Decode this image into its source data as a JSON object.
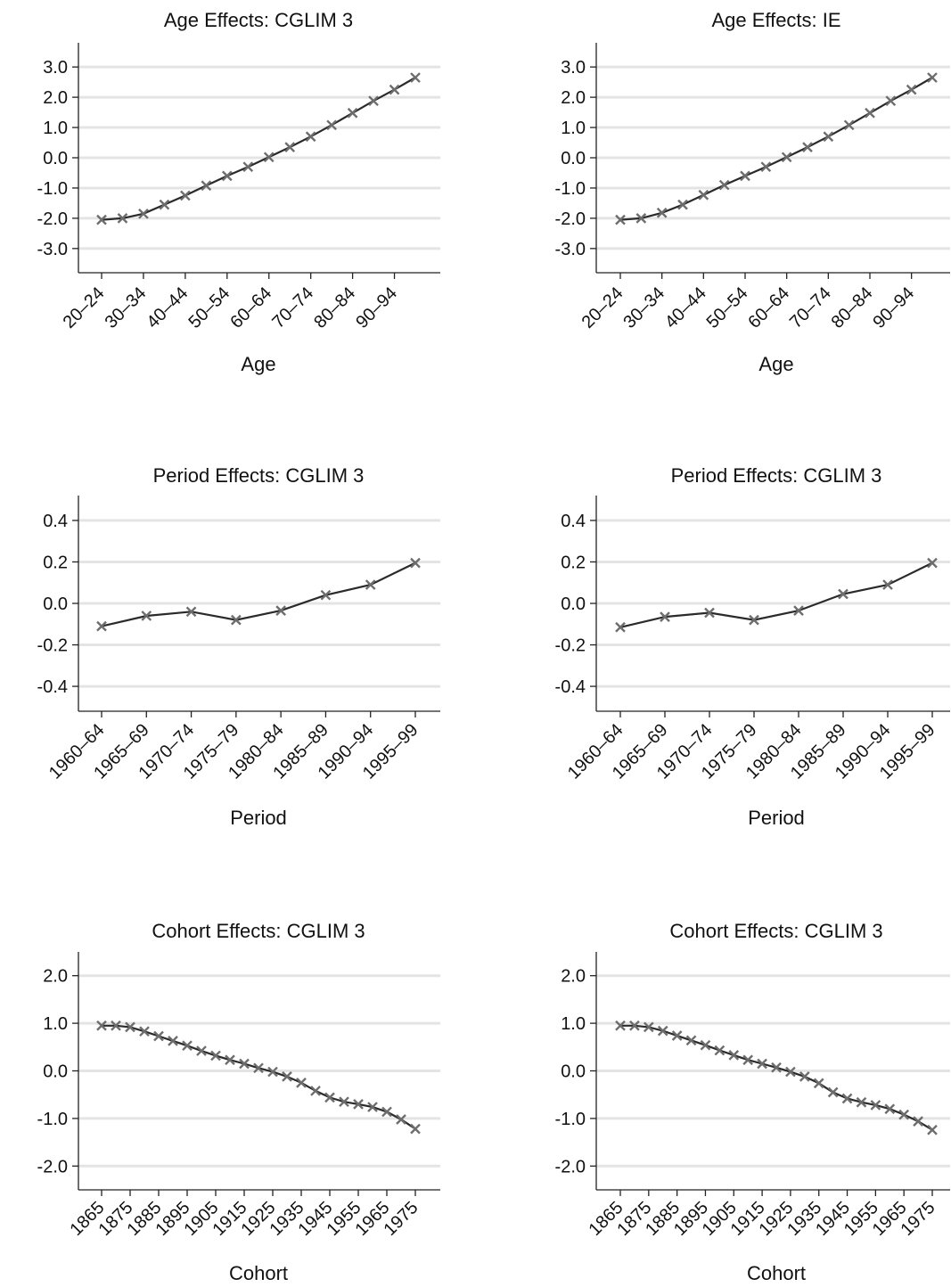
{
  "chart_data": [
    {
      "type": "line",
      "title": "Age Effects: CGLIM 3",
      "xlabel": "Age",
      "ylabel": "",
      "ylim": [
        -3.8,
        3.8
      ],
      "yticks": [
        "3.0",
        "2.0",
        "1.0",
        "0.0",
        "-1.0",
        "-2.0",
        "-3.0"
      ],
      "ytick_values": [
        3,
        2,
        1,
        0,
        -1,
        -2,
        -3
      ],
      "categories": [
        "20-24",
        "25-29",
        "30-34",
        "35-39",
        "40-44",
        "45-49",
        "50-54",
        "55-59",
        "60-64",
        "65-69",
        "70-74",
        "75-79",
        "80-84",
        "85-89",
        "90-94",
        "95-99"
      ],
      "xtick_labels": [
        "20–24",
        "30–34",
        "40–44",
        "50–54",
        "60–64",
        "70–74",
        "80–84",
        "90–94"
      ],
      "xtick_indices": [
        0,
        2,
        4,
        6,
        8,
        10,
        12,
        14
      ],
      "values": [
        -2.05,
        -2.0,
        -1.85,
        -1.55,
        -1.25,
        -0.92,
        -0.6,
        -0.3,
        0.02,
        0.35,
        0.7,
        1.08,
        1.48,
        1.88,
        2.25,
        2.65
      ],
      "grid": true
    },
    {
      "type": "line",
      "title": "Age Effects: IE",
      "xlabel": "Age",
      "ylabel": "",
      "ylim": [
        -3.8,
        3.8
      ],
      "yticks": [
        "3.0",
        "2.0",
        "1.0",
        "0.0",
        "-1.0",
        "-2.0",
        "-3.0"
      ],
      "ytick_values": [
        3,
        2,
        1,
        0,
        -1,
        -2,
        -3
      ],
      "categories": [
        "20-24",
        "25-29",
        "30-34",
        "35-39",
        "40-44",
        "45-49",
        "50-54",
        "55-59",
        "60-64",
        "65-69",
        "70-74",
        "75-79",
        "80-84",
        "85-89",
        "90-94",
        "95-99"
      ],
      "xtick_labels": [
        "20–24",
        "30–34",
        "40–44",
        "50–54",
        "60–64",
        "70–74",
        "80–84",
        "90–94"
      ],
      "xtick_indices": [
        0,
        2,
        4,
        6,
        8,
        10,
        12,
        14
      ],
      "values": [
        -2.05,
        -2.0,
        -1.82,
        -1.55,
        -1.23,
        -0.9,
        -0.6,
        -0.3,
        0.02,
        0.35,
        0.7,
        1.08,
        1.48,
        1.88,
        2.25,
        2.65
      ],
      "grid": true
    },
    {
      "type": "line",
      "title": "Period Effects: CGLIM 3",
      "xlabel": "Period",
      "ylabel": "",
      "ylim": [
        -0.52,
        0.52
      ],
      "yticks": [
        "0.4",
        "0.2",
        "0.0",
        "-0.2",
        "-0.4"
      ],
      "ytick_values": [
        0.4,
        0.2,
        0.0,
        -0.2,
        -0.4
      ],
      "categories": [
        "1960-64",
        "1965-69",
        "1970-74",
        "1975-79",
        "1980-84",
        "1985-89",
        "1990-94",
        "1995-99"
      ],
      "xtick_labels": [
        "1960–64",
        "1965–69",
        "1970–74",
        "1975–79",
        "1980–84",
        "1985–89",
        "1990–94",
        "1995–99"
      ],
      "xtick_indices": [
        0,
        1,
        2,
        3,
        4,
        5,
        6,
        7
      ],
      "values": [
        -0.11,
        -0.06,
        -0.04,
        -0.08,
        -0.035,
        0.04,
        0.09,
        0.195
      ],
      "grid": true
    },
    {
      "type": "line",
      "title": "Period Effects: CGLIM 3",
      "xlabel": "Period",
      "ylabel": "",
      "ylim": [
        -0.52,
        0.52
      ],
      "yticks": [
        "0.4",
        "0.2",
        "0.0",
        "-0.2",
        "-0.4"
      ],
      "ytick_values": [
        0.4,
        0.2,
        0.0,
        -0.2,
        -0.4
      ],
      "categories": [
        "1960-64",
        "1965-69",
        "1970-74",
        "1975-79",
        "1980-84",
        "1985-89",
        "1990-94",
        "1995-99"
      ],
      "xtick_labels": [
        "1960–64",
        "1965–69",
        "1970–74",
        "1975–79",
        "1980–84",
        "1985–89",
        "1990–94",
        "1995–99"
      ],
      "xtick_indices": [
        0,
        1,
        2,
        3,
        4,
        5,
        6,
        7
      ],
      "values": [
        -0.115,
        -0.065,
        -0.045,
        -0.08,
        -0.035,
        0.045,
        0.09,
        0.195
      ],
      "grid": true
    },
    {
      "type": "line",
      "title": "Cohort Effects: CGLIM 3",
      "xlabel": "Cohort",
      "ylabel": "",
      "ylim": [
        -2.5,
        2.5
      ],
      "yticks": [
        "2.0",
        "1.0",
        "0.0",
        "-1.0",
        "-2.0"
      ],
      "ytick_values": [
        2,
        1,
        0,
        -1,
        -2
      ],
      "categories": [
        "1865",
        "1870",
        "1875",
        "1880",
        "1885",
        "1890",
        "1895",
        "1900",
        "1905",
        "1910",
        "1915",
        "1920",
        "1925",
        "1930",
        "1935",
        "1940",
        "1945",
        "1950",
        "1955",
        "1960",
        "1965",
        "1970",
        "1975"
      ],
      "xtick_labels": [
        "1865",
        "1875",
        "1885",
        "1895",
        "1905",
        "1915",
        "1925",
        "1935",
        "1945",
        "1955",
        "1965",
        "1975"
      ],
      "xtick_indices": [
        0,
        2,
        4,
        6,
        8,
        10,
        12,
        14,
        16,
        18,
        20,
        22
      ],
      "values": [
        0.95,
        0.95,
        0.92,
        0.83,
        0.73,
        0.63,
        0.53,
        0.42,
        0.32,
        0.23,
        0.15,
        0.06,
        -0.02,
        -0.12,
        -0.25,
        -0.42,
        -0.56,
        -0.65,
        -0.7,
        -0.76,
        -0.86,
        -1.02,
        -1.22
      ],
      "grid": true
    },
    {
      "type": "line",
      "title": "Cohort Effects: CGLIM 3",
      "xlabel": "Cohort",
      "ylabel": "",
      "ylim": [
        -2.5,
        2.5
      ],
      "yticks": [
        "2.0",
        "1.0",
        "0.0",
        "-1.0",
        "-2.0"
      ],
      "ytick_values": [
        2,
        1,
        0,
        -1,
        -2
      ],
      "categories": [
        "1865",
        "1870",
        "1875",
        "1880",
        "1885",
        "1890",
        "1895",
        "1900",
        "1905",
        "1910",
        "1915",
        "1920",
        "1925",
        "1930",
        "1935",
        "1940",
        "1945",
        "1950",
        "1955",
        "1960",
        "1965",
        "1970",
        "1975"
      ],
      "xtick_labels": [
        "1865",
        "1875",
        "1885",
        "1895",
        "1905",
        "1915",
        "1925",
        "1935",
        "1945",
        "1955",
        "1965",
        "1975"
      ],
      "xtick_indices": [
        0,
        2,
        4,
        6,
        8,
        10,
        12,
        14,
        16,
        18,
        20,
        22
      ],
      "values": [
        0.95,
        0.95,
        0.92,
        0.84,
        0.74,
        0.64,
        0.54,
        0.43,
        0.33,
        0.23,
        0.15,
        0.07,
        -0.02,
        -0.12,
        -0.26,
        -0.45,
        -0.58,
        -0.66,
        -0.72,
        -0.8,
        -0.92,
        -1.06,
        -1.24
      ],
      "grid": true
    }
  ]
}
